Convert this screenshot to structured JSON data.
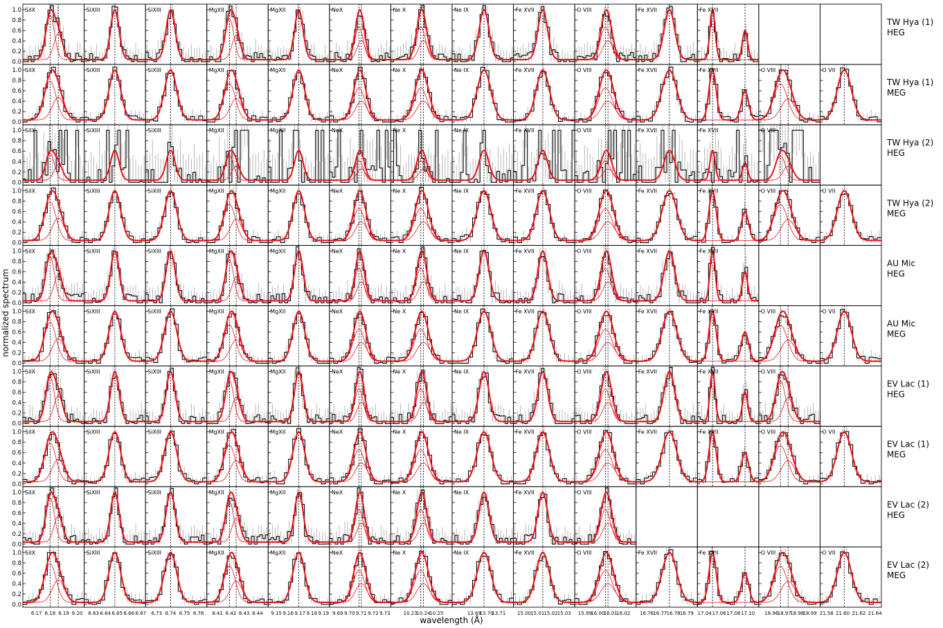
{
  "figure": {
    "ylabel": "normalized spectrum",
    "xlabel": "wavelength (Å)",
    "yticks": [
      "0.0",
      "0.2",
      "0.4",
      "0.6",
      "0.8",
      "1.0"
    ]
  },
  "columns": [
    {
      "line": "SiIX",
      "ticks": [
        "6.17",
        "6.18",
        "6.19",
        "6.20"
      ],
      "xlim": [
        6.16,
        6.205
      ],
      "centers": [
        6.18,
        6.186
      ],
      "width": 0.004
    },
    {
      "line": "SiXIII",
      "ticks": [
        "6.63",
        "6.64",
        "6.65",
        "6.66",
        "6.67"
      ],
      "xlim": [
        6.622,
        6.674
      ],
      "centers": [
        6.648
      ],
      "width": 0.0045
    },
    {
      "line": "SiXIII",
      "ticks": [
        "6.73",
        "6.74",
        "6.75",
        "6.76"
      ],
      "xlim": [
        6.722,
        6.766
      ],
      "centers": [
        6.74
      ],
      "width": 0.004
    },
    {
      "line": "MgXII",
      "ticks": [
        "8.41",
        "8.42",
        "8.43",
        "8.44"
      ],
      "xlim": [
        8.402,
        8.448
      ],
      "centers": [
        8.419,
        8.424
      ],
      "width": 0.004
    },
    {
      "line": "MgXII",
      "ticks": [
        "9.15",
        "9.16",
        "9.17",
        "9.18",
        "9.19"
      ],
      "xlim": [
        9.143,
        9.195
      ],
      "centers": [
        9.169
      ],
      "width": 0.0045
    },
    {
      "line": "NeX",
      "ticks": [
        "9.69",
        "9.70",
        "9.71",
        "9.72",
        "9.73"
      ],
      "xlim": [
        9.683,
        9.735
      ],
      "centers": [
        9.708,
        9.71
      ],
      "width": 0.0045
    },
    {
      "line": "Ne X",
      "ticks": [
        "10.23",
        "10.24",
        "10.25"
      ],
      "xlim": [
        10.215,
        10.262
      ],
      "centers": [
        10.238,
        10.24
      ],
      "width": 0.0045
    },
    {
      "line": "Ne IX",
      "ticks": [
        "13.69",
        "13.70",
        "13.71"
      ],
      "xlim": [
        13.672,
        13.722
      ],
      "centers": [
        13.698
      ],
      "width": 0.005
    },
    {
      "line": "Fe XVII",
      "ticks": [
        "15.00",
        "15.01",
        "15.02",
        "15.03"
      ],
      "xlim": [
        14.992,
        15.038
      ],
      "centers": [
        15.014
      ],
      "width": 0.0045
    },
    {
      "line": "O VIII",
      "ticks": [
        "15.99",
        "16.00",
        "16.01",
        "16.02"
      ],
      "xlim": [
        15.982,
        16.03
      ],
      "centers": [
        16.006,
        16.008
      ],
      "width": 0.005
    },
    {
      "line": "Fe XVII",
      "ticks": [
        "16.76",
        "16.77",
        "16.78",
        "16.79"
      ],
      "xlim": [
        16.752,
        16.798
      ],
      "centers": [
        16.777
      ],
      "width": 0.005
    },
    {
      "line": "Fe XVII",
      "ticks": [
        "17.04",
        "17.06",
        "17.08",
        "17.10"
      ],
      "xlim": [
        17.03,
        17.115
      ],
      "centers": [
        17.051,
        17.096
      ],
      "width": 0.0045
    },
    {
      "line": "O VIII",
      "ticks": [
        "18.96",
        "18.97",
        "18.98",
        "18.99"
      ],
      "xlim": [
        18.95,
        18.998
      ],
      "centers": [
        18.967,
        18.973
      ],
      "width": 0.005
    },
    {
      "line": "O VII",
      "ticks": [
        "21.58",
        "21.60",
        "21.62",
        "21.64"
      ],
      "xlim": [
        21.572,
        21.648
      ],
      "centers": [
        21.602
      ],
      "width": 0.008
    }
  ],
  "rows": [
    {
      "source": "TW Hya (1)",
      "grating": "HEG",
      "panels": 12
    },
    {
      "source": "TW Hya (1)",
      "grating": "MEG",
      "panels": 14
    },
    {
      "source": "TW Hya (2)",
      "grating": "HEG",
      "panels": 13
    },
    {
      "source": "TW Hya (2)",
      "grating": "MEG",
      "panels": 14
    },
    {
      "source": "AU Mic",
      "grating": "HEG",
      "panels": 12
    },
    {
      "source": "AU Mic",
      "grating": "MEG",
      "panels": 14
    },
    {
      "source": "EV Lac (1)",
      "grating": "HEG",
      "panels": 13
    },
    {
      "source": "EV Lac (1)",
      "grating": "MEG",
      "panels": 14
    },
    {
      "source": "EV Lac (2)",
      "grating": "HEG",
      "panels": 10
    },
    {
      "source": "EV Lac (2)",
      "grating": "MEG",
      "panels": 14
    }
  ],
  "colors": {
    "data": "#000000",
    "errorbar": "#9a9a9a",
    "model": "#e8101a",
    "frame": "#000000",
    "marker": "#000000"
  }
}
